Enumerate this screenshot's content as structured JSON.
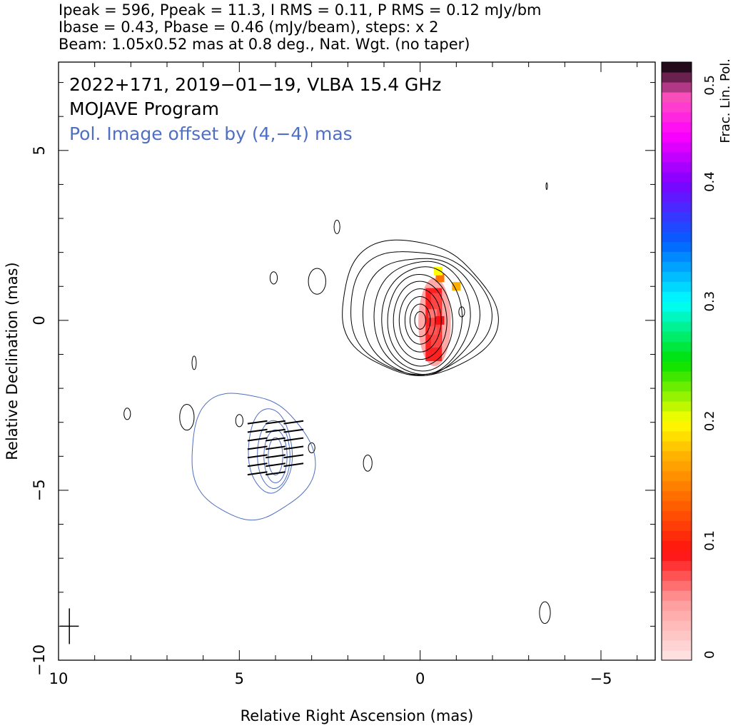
{
  "header": {
    "line1": "Ipeak = 596, Ppeak = 11.3, I RMS = 0.11, P RMS = 0.12 mJy/bm",
    "line2": "Ibase = 0.43, Pbase = 0.46 (mJy/beam), steps: x 2",
    "line3": "Beam: 1.05x0.52 mas at 0.8 deg., Nat. Wgt. (no taper)"
  },
  "chart_data": {
    "type": "contour",
    "title_lines": [
      "2022+171, 2019−01−19, VLBA 15.4 GHz",
      "MOJAVE Program",
      "Pol. Image offset by (4,−4) mas"
    ],
    "xlabel": "Relative Right Ascension (mas)",
    "ylabel": "Relative Declination (mas)",
    "xlim": [
      10.0,
      -6.5
    ],
    "ylim": [
      -10.0,
      7.6
    ],
    "x_ticks": [
      10,
      5,
      0,
      -5
    ],
    "x_tick_labels": [
      "10",
      "5",
      "0",
      "−5"
    ],
    "y_ticks": [
      5,
      0,
      -5,
      -10
    ],
    "y_tick_labels": [
      "5",
      "0",
      "−5",
      "−10"
    ],
    "colorbar": {
      "label": "Frac. Lin. Pol.",
      "range": [
        0,
        0.5
      ],
      "ticks": [
        0,
        0.1,
        0.2,
        0.3,
        0.4,
        0.5
      ],
      "tick_labels": [
        "0",
        "0.1",
        "0.2",
        "0.3",
        "0.4",
        "0.5"
      ]
    },
    "stokes_i_contours": {
      "color": "#000000",
      "center": [
        0.0,
        0.0
      ],
      "levels_mjy_beam": [
        0.43,
        0.86,
        1.72,
        3.44,
        6.88,
        13.8,
        27.5,
        55,
        110,
        220,
        440
      ]
    },
    "polarized_contours": {
      "color": "#4f6fc4",
      "offset_mas": [
        4,
        -4
      ],
      "levels_mjy_beam": [
        0.46,
        0.92,
        1.84,
        3.68,
        7.36
      ]
    },
    "frac_pol_pixels": [
      {
        "x": -0.35,
        "y": 0.2,
        "value": 0.06
      },
      {
        "x": -0.35,
        "y": -0.3,
        "value": 0.07
      },
      {
        "x": -0.55,
        "y": 0.0,
        "value": 0.09
      },
      {
        "x": -1.0,
        "y": 1.0,
        "value": 0.17
      },
      {
        "x": -0.55,
        "y": 1.25,
        "value": 0.14
      },
      {
        "x": -0.5,
        "y": 1.45,
        "value": 0.2
      }
    ],
    "evpa_vectors_count": 20,
    "beam": {
      "major_mas": 1.05,
      "minor_mas": 0.52,
      "pa_deg": 0.8,
      "position": [
        9.7,
        -9.0
      ]
    }
  }
}
